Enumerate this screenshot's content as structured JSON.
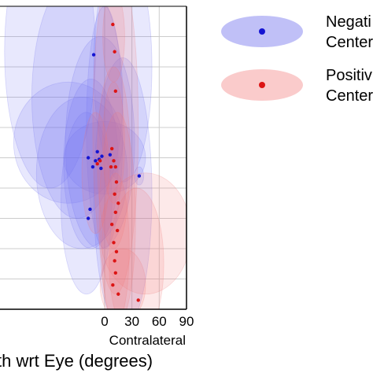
{
  "chart_data": {
    "type": "scatter",
    "xlabel": "th wrt Eye (degrees)",
    "x_note": "Contralateral",
    "xlim": [
      -115,
      90
    ],
    "ylim": [
      -50,
      50
    ],
    "x_ticks": [
      0,
      30,
      60,
      90
    ],
    "x_tick_labels": [
      "0",
      "30",
      "60",
      "90"
    ],
    "grid": true,
    "legend_position": "right",
    "legend": [
      {
        "label": "Negati",
        "label2": "Center",
        "color": "#1414d2",
        "fill": "#8c8cf0"
      },
      {
        "label": "Positiv",
        "label2": "Center",
        "color": "#dc1414",
        "fill": "#f5a0a0"
      }
    ],
    "series": [
      {
        "key": "neg",
        "color": "#1414d2",
        "fill": "#6e6ef0",
        "points": [
          {
            "x": -12,
            "y": 34
          },
          {
            "x": -18,
            "y": 0
          },
          {
            "x": -13,
            "y": -3
          },
          {
            "x": -10,
            "y": -1
          },
          {
            "x": -8,
            "y": 2
          },
          {
            "x": -6,
            "y": -0.5
          },
          {
            "x": -3,
            "y": 0.5
          },
          {
            "x": -4,
            "y": -3.5
          },
          {
            "x": 6,
            "y": 1
          },
          {
            "x": -16,
            "y": -17
          },
          {
            "x": -18,
            "y": -20
          },
          {
            "x": 38,
            "y": -6
          }
        ]
      },
      {
        "key": "pos",
        "color": "#dc1414",
        "fill": "#f07878",
        "points": [
          {
            "x": 9,
            "y": 44
          },
          {
            "x": 11,
            "y": 35
          },
          {
            "x": 12,
            "y": 22
          },
          {
            "x": -8,
            "y": -2
          },
          {
            "x": -5,
            "y": -1
          },
          {
            "x": 8,
            "y": 3
          },
          {
            "x": 10,
            "y": -1
          },
          {
            "x": 12,
            "y": -3
          },
          {
            "x": 7,
            "y": -3
          },
          {
            "x": 13,
            "y": -8
          },
          {
            "x": 11,
            "y": -12
          },
          {
            "x": 15,
            "y": -15
          },
          {
            "x": 12,
            "y": -18
          },
          {
            "x": 8,
            "y": -22
          },
          {
            "x": 14,
            "y": -24
          },
          {
            "x": 10,
            "y": -28
          },
          {
            "x": 13,
            "y": -31
          },
          {
            "x": 11,
            "y": -34
          },
          {
            "x": 12,
            "y": -38
          },
          {
            "x": 9,
            "y": -42
          },
          {
            "x": 15,
            "y": -45
          },
          {
            "x": 37,
            "y": -47
          }
        ]
      }
    ],
    "ellipses": [
      {
        "series": "neg",
        "cx": -60,
        "cy": 35,
        "rx": 50,
        "ry": 45
      },
      {
        "series": "neg",
        "cx": -30,
        "cy": 20,
        "rx": 50,
        "ry": 40
      },
      {
        "series": "neg",
        "cx": 20,
        "cy": 30,
        "rx": 32,
        "ry": 38
      },
      {
        "series": "neg",
        "cx": -40,
        "cy": 5,
        "rx": 60,
        "ry": 20
      },
      {
        "series": "neg",
        "cx": -5,
        "cy": 5,
        "rx": 38,
        "ry": 35
      },
      {
        "series": "neg",
        "cx": 0,
        "cy": 0,
        "rx": 45,
        "ry": 12
      },
      {
        "series": "neg",
        "cx": -15,
        "cy": -2,
        "rx": 30,
        "ry": 28
      },
      {
        "series": "neg",
        "cx": -25,
        "cy": -5,
        "rx": 50,
        "ry": 25
      },
      {
        "series": "neg",
        "cx": 20,
        "cy": -12,
        "rx": 32,
        "ry": 45
      },
      {
        "series": "neg",
        "cx": -20,
        "cy": -15,
        "rx": 28,
        "ry": 30
      },
      {
        "series": "neg",
        "cx": 0,
        "cy": 10,
        "rx": 20,
        "ry": 40
      },
      {
        "series": "neg",
        "cx": 38,
        "cy": -6,
        "rx": 5,
        "ry": 3
      },
      {
        "series": "pos",
        "cx": 12,
        "cy": 10,
        "rx": 25,
        "ry": 55
      },
      {
        "series": "pos",
        "cx": 10,
        "cy": 0,
        "rx": 18,
        "ry": 30
      },
      {
        "series": "pos",
        "cx": 10,
        "cy": 5,
        "rx": 12,
        "ry": 20
      },
      {
        "series": "pos",
        "cx": 14,
        "cy": -20,
        "rx": 20,
        "ry": 35
      },
      {
        "series": "pos",
        "cx": 12,
        "cy": -30,
        "rx": 15,
        "ry": 25
      },
      {
        "series": "pos",
        "cx": 45,
        "cy": -25,
        "rx": 50,
        "ry": 20
      },
      {
        "series": "pos",
        "cx": 35,
        "cy": -35,
        "rx": 30,
        "ry": 25
      },
      {
        "series": "pos",
        "cx": 10,
        "cy": 40,
        "rx": 12,
        "ry": 15
      },
      {
        "series": "pos",
        "cx": -10,
        "cy": -5,
        "rx": 15,
        "ry": 20
      },
      {
        "series": "pos",
        "cx": 20,
        "cy": -42,
        "rx": 25,
        "ry": 12
      }
    ]
  }
}
